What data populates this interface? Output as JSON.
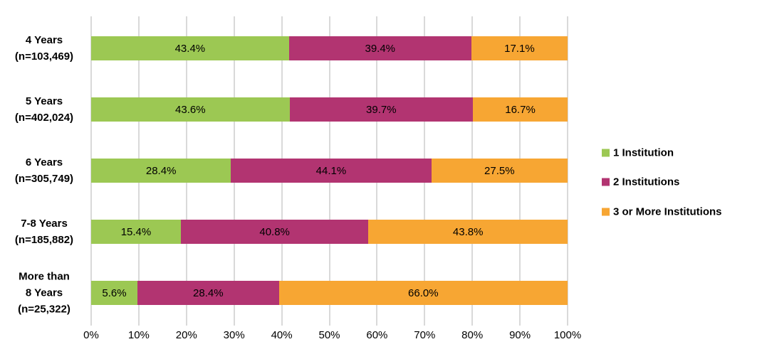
{
  "chart_data": {
    "type": "bar",
    "orientation": "horizontal",
    "stacked": true,
    "categories": [
      "4 Years\n(n=103,469)",
      "5 Years\n(n=402,024)",
      "6 Years\n(n=305,749)",
      "7-8 Years\n(n=185,882)",
      "More than\n8 Years\n(n=25,322)"
    ],
    "series": [
      {
        "name": "1 Institution",
        "color": "#9CC853",
        "values": [
          43.4,
          43.6,
          28.4,
          15.4,
          5.6
        ]
      },
      {
        "name": "2 Institutions",
        "color": "#B23471",
        "values": [
          39.4,
          39.7,
          44.1,
          40.8,
          28.4
        ]
      },
      {
        "name": "3 or More Institutions",
        "color": "#F7A633",
        "values": [
          17.1,
          16.7,
          27.5,
          43.8,
          66.0
        ]
      }
    ],
    "data_labels": [
      [
        "43.4%",
        "39.4%",
        "17.1%"
      ],
      [
        "43.6%",
        "39.7%",
        "16.7%"
      ],
      [
        "28.4%",
        "44.1%",
        "27.5%"
      ],
      [
        "15.4%",
        "40.8%",
        "43.8%"
      ],
      [
        "5.6%",
        "28.4%",
        "66.0%"
      ]
    ],
    "x_ticks": [
      "0%",
      "10%",
      "20%",
      "30%",
      "40%",
      "50%",
      "60%",
      "70%",
      "80%",
      "90%",
      "100%"
    ],
    "xlim": [
      0,
      100
    ],
    "grid": "vertical",
    "legend_position": "right"
  },
  "colors": {
    "gridline": "#D9D9D9",
    "text": "#000000",
    "background": "#FFFFFF"
  }
}
